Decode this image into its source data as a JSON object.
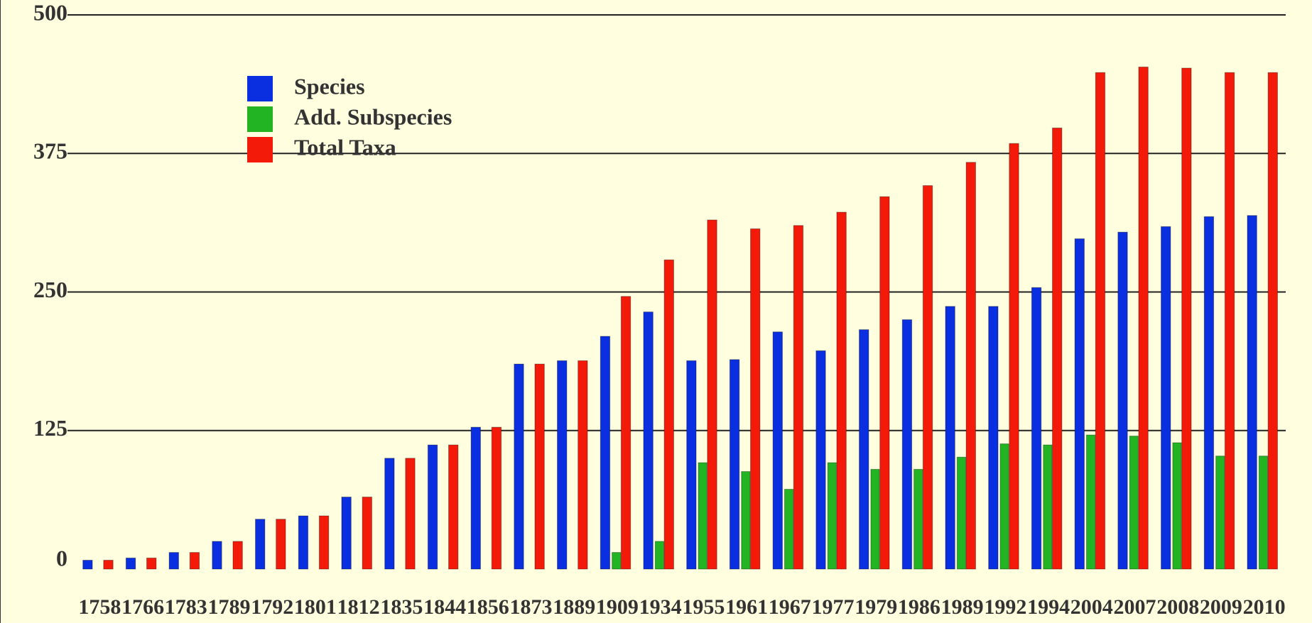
{
  "chart_data": {
    "type": "bar",
    "categories": [
      "1758",
      "1766",
      "1783",
      "1789",
      "1792",
      "1801",
      "1812",
      "1835",
      "1844",
      "1856",
      "1873",
      "1889",
      "1909",
      "1934",
      "1955",
      "1961",
      "1967",
      "1977",
      "1979",
      "1986",
      "1989",
      "1992",
      "1994",
      "2004",
      "2007",
      "2008",
      "2009",
      "2010"
    ],
    "series": [
      {
        "name": "Species",
        "color": "#0a2fe0",
        "values": [
          8,
          10,
          15,
          25,
          45,
          48,
          65,
          100,
          112,
          128,
          185,
          188,
          210,
          232,
          188,
          189,
          214,
          197,
          216,
          225,
          237,
          237,
          254,
          298,
          304,
          309,
          318,
          319
        ]
      },
      {
        "name": "Add. Subspecies",
        "color": "#22b422",
        "values": [
          0,
          0,
          0,
          0,
          0,
          0,
          0,
          0,
          0,
          0,
          0,
          0,
          15,
          25,
          96,
          88,
          72,
          96,
          90,
          90,
          101,
          113,
          112,
          121,
          120,
          114,
          102,
          102
        ]
      },
      {
        "name": "Total Taxa",
        "color": "#f41a0a",
        "values": [
          8,
          10,
          15,
          25,
          45,
          48,
          65,
          100,
          112,
          128,
          185,
          188,
          246,
          279,
          315,
          307,
          310,
          322,
          336,
          346,
          367,
          384,
          398,
          448,
          453,
          452,
          448,
          448
        ]
      }
    ],
    "ylim": [
      0,
      500
    ],
    "yticks": [
      0,
      125,
      250,
      375,
      500
    ],
    "grid": true
  }
}
